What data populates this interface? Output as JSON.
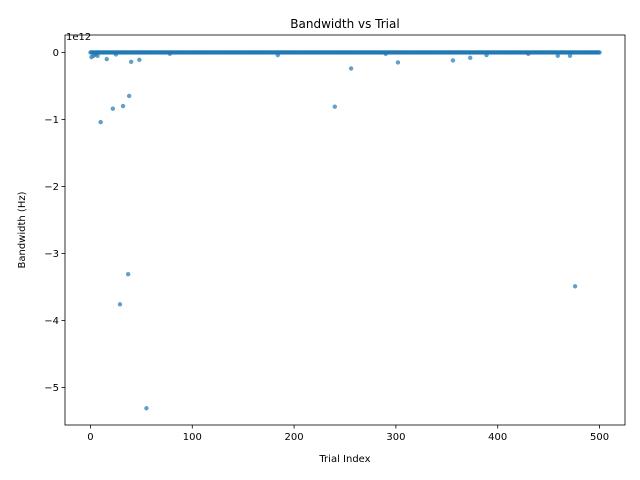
{
  "chart_data": {
    "type": "scatter",
    "title": "Bandwidth vs Trial",
    "xlabel": "Trial Index",
    "ylabel": "Bandwidth (Hz)",
    "y_scale_factor": "1e12",
    "xlim": [
      -25,
      525
    ],
    "ylim": [
      -5.56,
      0.26
    ],
    "x_ticks": [
      0,
      100,
      200,
      300,
      400,
      500
    ],
    "y_ticks": [
      0,
      -1,
      -2,
      -3,
      -4,
      -5
    ],
    "x_tick_labels": [
      "0",
      "100",
      "200",
      "300",
      "400",
      "500"
    ],
    "y_tick_labels": [
      "0",
      "−1",
      "−2",
      "−3",
      "−4",
      "−5"
    ],
    "grid": false,
    "legend": "none",
    "marker_color": "#1f77b4",
    "series": [
      {
        "baseline_x_range": [
          0,
          500
        ],
        "baseline_y": 0.0,
        "outliers": [
          {
            "x": 1,
            "y": -0.07
          },
          {
            "x": 3,
            "y": -0.05
          },
          {
            "x": 5,
            "y": -0.03
          },
          {
            "x": 7,
            "y": -0.05
          },
          {
            "x": 10,
            "y": -1.04
          },
          {
            "x": 16,
            "y": -0.1
          },
          {
            "x": 22,
            "y": -0.84
          },
          {
            "x": 25,
            "y": -0.03
          },
          {
            "x": 29,
            "y": -3.76
          },
          {
            "x": 32,
            "y": -0.8
          },
          {
            "x": 37,
            "y": -3.31
          },
          {
            "x": 38,
            "y": -0.65
          },
          {
            "x": 40,
            "y": -0.14
          },
          {
            "x": 48,
            "y": -0.11
          },
          {
            "x": 55,
            "y": -5.31
          },
          {
            "x": 78,
            "y": -0.02
          },
          {
            "x": 184,
            "y": -0.04
          },
          {
            "x": 240,
            "y": -0.81
          },
          {
            "x": 256,
            "y": -0.24
          },
          {
            "x": 290,
            "y": -0.02
          },
          {
            "x": 302,
            "y": -0.15
          },
          {
            "x": 356,
            "y": -0.12
          },
          {
            "x": 373,
            "y": -0.08
          },
          {
            "x": 389,
            "y": -0.04
          },
          {
            "x": 430,
            "y": -0.02
          },
          {
            "x": 459,
            "y": -0.05
          },
          {
            "x": 471,
            "y": -0.05
          },
          {
            "x": 476,
            "y": -3.49
          }
        ]
      }
    ]
  }
}
